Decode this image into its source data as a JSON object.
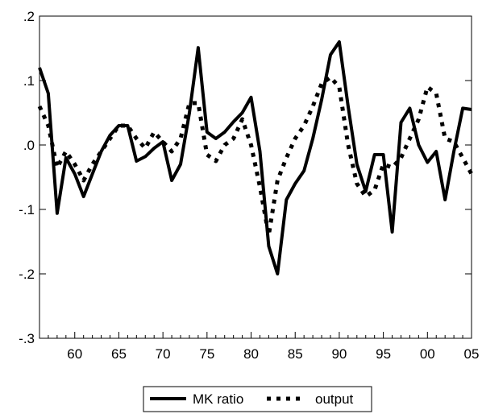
{
  "chart_data": {
    "type": "line",
    "title": "",
    "xlabel": "",
    "ylabel": "",
    "xlim": [
      1956,
      2005
    ],
    "ylim": [
      -0.3,
      0.2
    ],
    "grid": false,
    "legend_position": "bottom-center",
    "x_tick_labels": [
      {
        "x": 1960,
        "label": "60"
      },
      {
        "x": 1965,
        "label": "65"
      },
      {
        "x": 1970,
        "label": "70"
      },
      {
        "x": 1975,
        "label": "75"
      },
      {
        "x": 1980,
        "label": "80"
      },
      {
        "x": 1985,
        "label": "85"
      },
      {
        "x": 1990,
        "label": "90"
      },
      {
        "x": 1995,
        "label": "95"
      },
      {
        "x": 2000,
        "label": "00"
      },
      {
        "x": 2005,
        "label": "05"
      }
    ],
    "y_tick_labels": [
      {
        "y": 0.2,
        "label": ".2"
      },
      {
        "y": 0.1,
        "label": ".1"
      },
      {
        "y": 0.0,
        "label": ".0"
      },
      {
        "y": -0.1,
        "label": "-.1"
      },
      {
        "y": -0.2,
        "label": "-.2"
      },
      {
        "y": -0.3,
        "label": "-.3"
      }
    ],
    "x": [
      1956,
      1957,
      1958,
      1959,
      1960,
      1961,
      1962,
      1963,
      1964,
      1965,
      1966,
      1967,
      1968,
      1969,
      1970,
      1971,
      1972,
      1973,
      1974,
      1975,
      1976,
      1977,
      1978,
      1979,
      1980,
      1981,
      1982,
      1983,
      1984,
      1985,
      1986,
      1987,
      1988,
      1989,
      1990,
      1991,
      1992,
      1993,
      1994,
      1995,
      1996,
      1997,
      1998,
      1999,
      2000,
      2001,
      2002,
      2003,
      2004,
      2005
    ],
    "series": [
      {
        "name": "MK ratio",
        "style": "solid",
        "color": "#000000",
        "values": [
          0.12,
          0.08,
          -0.106,
          -0.02,
          -0.045,
          -0.08,
          -0.045,
          -0.01,
          0.015,
          0.03,
          0.03,
          -0.025,
          -0.018,
          -0.005,
          0.005,
          -0.055,
          -0.03,
          0.05,
          0.151,
          0.02,
          0.01,
          0.02,
          0.036,
          0.05,
          0.074,
          -0.01,
          -0.157,
          -0.2,
          -0.085,
          -0.06,
          -0.04,
          0.01,
          0.07,
          0.14,
          0.16,
          0.06,
          -0.03,
          -0.072,
          -0.015,
          -0.015,
          -0.135,
          0.035,
          0.057,
          0.0,
          -0.027,
          -0.01,
          -0.085,
          -0.01,
          0.057,
          0.055
        ]
      },
      {
        "name": "output",
        "style": "dotted",
        "color": "#000000",
        "values": [
          0.06,
          0.03,
          -0.035,
          -0.01,
          -0.03,
          -0.055,
          -0.03,
          -0.01,
          0.01,
          0.03,
          0.03,
          0.01,
          -0.005,
          0.02,
          0.005,
          -0.01,
          0.01,
          0.065,
          0.065,
          -0.015,
          -0.025,
          0.0,
          0.01,
          0.04,
          0.0,
          -0.065,
          -0.14,
          -0.055,
          -0.02,
          0.01,
          0.03,
          0.06,
          0.095,
          0.105,
          0.09,
          0.0,
          -0.06,
          -0.08,
          -0.07,
          -0.03,
          -0.035,
          -0.02,
          0.01,
          0.04,
          0.09,
          0.08,
          0.01,
          0.005,
          -0.02,
          -0.045
        ]
      }
    ]
  }
}
